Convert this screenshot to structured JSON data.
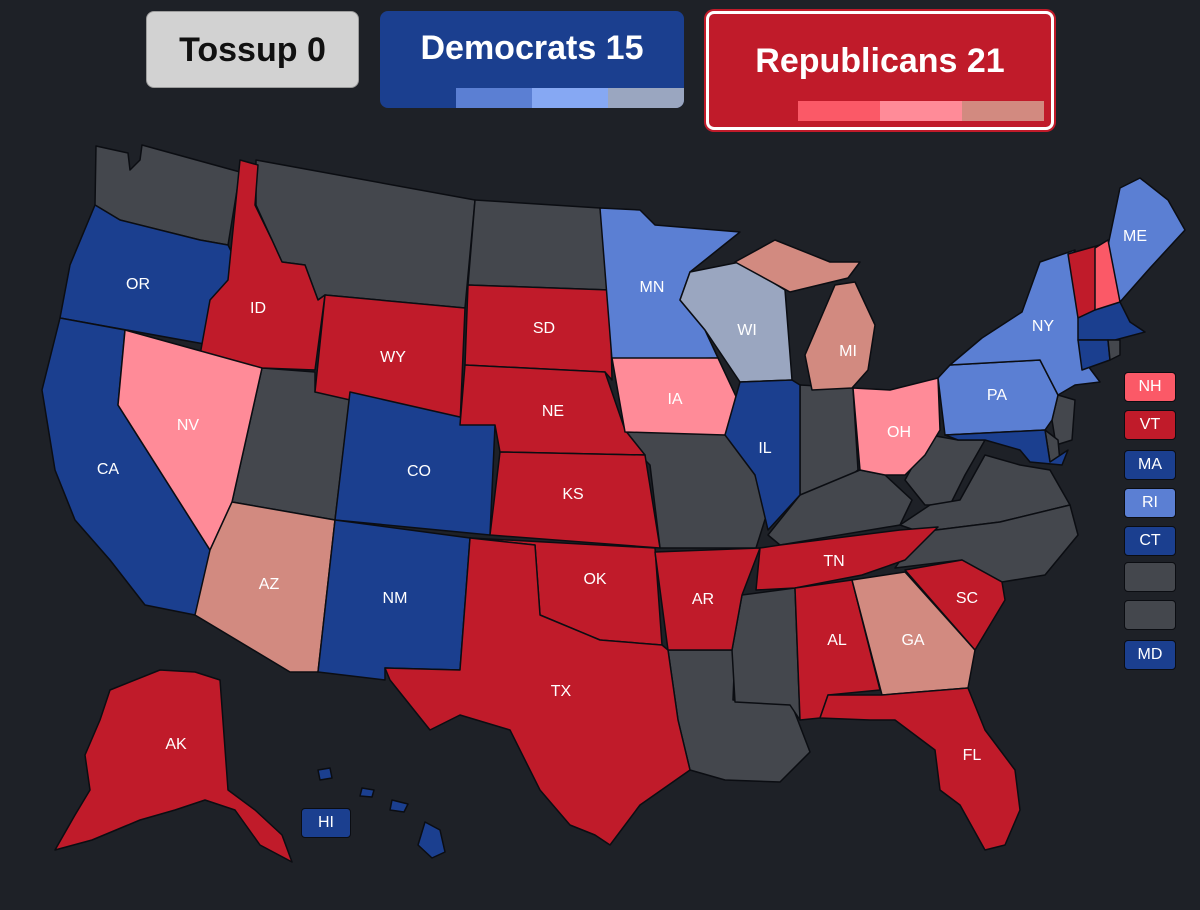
{
  "tallies": {
    "tossup": {
      "label": "Tossup 0"
    },
    "democrats": {
      "label": "Democrats 15"
    },
    "republicans": {
      "label": "Republicans 21"
    }
  },
  "colors": {
    "background": "#1e2127",
    "no_race": "#44474d",
    "solid_d": "#1b3f8f",
    "likely_d": "#5b7fd3",
    "lean_d": "#86a8f3",
    "tilt_d": "#9aa6c0",
    "solid_r": "#c01b2a",
    "likely_r": "#fb5967",
    "lean_r": "#ff8b98",
    "tilt_r": "#d28a80",
    "tossup": "#d2d2d2"
  },
  "states": [
    {
      "abbr": "OR",
      "rating": "solid_d"
    },
    {
      "abbr": "ID",
      "rating": "solid_r"
    },
    {
      "abbr": "CA",
      "rating": "solid_d"
    },
    {
      "abbr": "NV",
      "rating": "lean_r"
    },
    {
      "abbr": "AZ",
      "rating": "tilt_r"
    },
    {
      "abbr": "WY",
      "rating": "solid_r"
    },
    {
      "abbr": "CO",
      "rating": "solid_d"
    },
    {
      "abbr": "NM",
      "rating": "solid_d"
    },
    {
      "abbr": "SD",
      "rating": "solid_r"
    },
    {
      "abbr": "NE",
      "rating": "solid_r"
    },
    {
      "abbr": "KS",
      "rating": "solid_r"
    },
    {
      "abbr": "OK",
      "rating": "solid_r"
    },
    {
      "abbr": "TX",
      "rating": "solid_r"
    },
    {
      "abbr": "MN",
      "rating": "likely_d"
    },
    {
      "abbr": "IA",
      "rating": "lean_r"
    },
    {
      "abbr": "AR",
      "rating": "solid_r"
    },
    {
      "abbr": "WI",
      "rating": "tilt_d"
    },
    {
      "abbr": "IL",
      "rating": "solid_d"
    },
    {
      "abbr": "MI",
      "rating": "tilt_r"
    },
    {
      "abbr": "OH",
      "rating": "lean_r"
    },
    {
      "abbr": "TN",
      "rating": "solid_r"
    },
    {
      "abbr": "AL",
      "rating": "solid_r"
    },
    {
      "abbr": "GA",
      "rating": "tilt_r"
    },
    {
      "abbr": "SC",
      "rating": "solid_r"
    },
    {
      "abbr": "FL",
      "rating": "solid_r"
    },
    {
      "abbr": "PA",
      "rating": "likely_d"
    },
    {
      "abbr": "NY",
      "rating": "likely_d"
    },
    {
      "abbr": "ME",
      "rating": "likely_d"
    },
    {
      "abbr": "AK",
      "rating": "solid_r"
    },
    {
      "abbr": "HI",
      "rating": "solid_d"
    },
    {
      "abbr": "VT",
      "rating": "solid_r"
    },
    {
      "abbr": "NH",
      "rating": "likely_r"
    },
    {
      "abbr": "MA",
      "rating": "solid_d"
    },
    {
      "abbr": "CT",
      "rating": "solid_d"
    },
    {
      "abbr": "MD",
      "rating": "solid_d"
    }
  ],
  "small_states": [
    {
      "abbr": "NH",
      "rating": "likely_r"
    },
    {
      "abbr": "VT",
      "rating": "solid_r"
    },
    {
      "abbr": "MA",
      "rating": "solid_d"
    },
    {
      "abbr": "RI",
      "rating": "likely_d"
    },
    {
      "abbr": "CT",
      "rating": "solid_d"
    },
    {
      "abbr": "",
      "rating": "no_race"
    },
    {
      "abbr": "",
      "rating": "no_race"
    },
    {
      "abbr": "MD",
      "rating": "solid_d"
    }
  ]
}
